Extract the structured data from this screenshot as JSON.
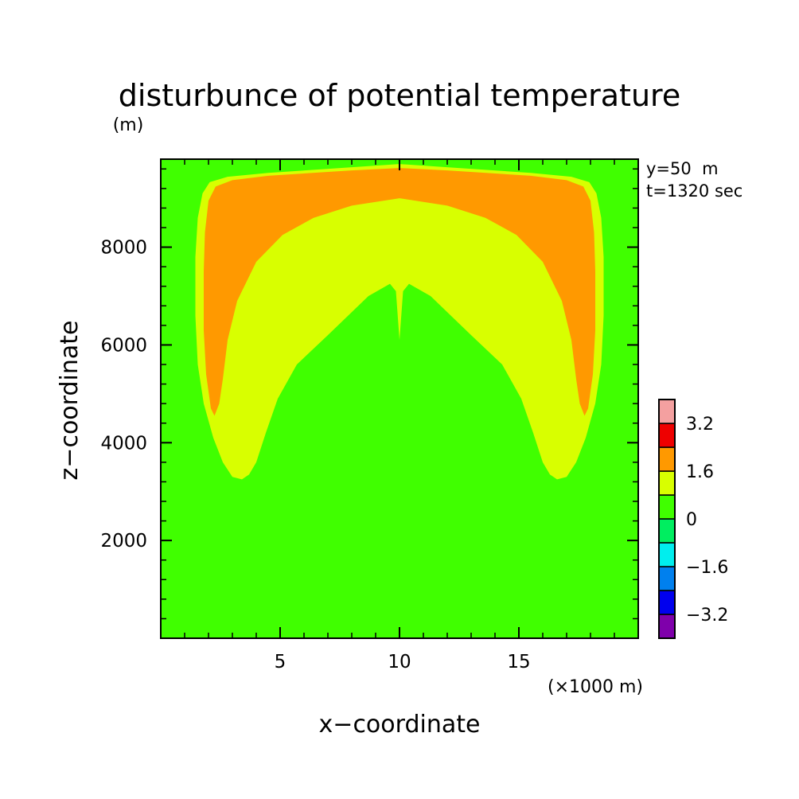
{
  "chart_data": {
    "type": "heatmap",
    "title": "disturbunce of potential temperature",
    "ylabel": "z−coordinate",
    "ylabel_unit": "(m)",
    "xlabel": "x−coordinate",
    "xlabel_unit": "(×1000 m)",
    "annotations": [
      "y=50  m",
      "t=1320 sec"
    ],
    "xlim": [
      0,
      20
    ],
    "ylim": [
      0,
      9800
    ],
    "x_ticks": [
      {
        "value": 5,
        "label": "5"
      },
      {
        "value": 10,
        "label": "10"
      },
      {
        "value": 15,
        "label": "15"
      }
    ],
    "x_minor_step": 1,
    "y_ticks": [
      {
        "value": 2000,
        "label": "2000"
      },
      {
        "value": 4000,
        "label": "4000"
      },
      {
        "value": 6000,
        "label": "6000"
      },
      {
        "value": 8000,
        "label": "8000"
      }
    ],
    "y_minor_step": 400,
    "legend": {
      "placement": "right",
      "bands": [
        {
          "range": [
            -4.0,
            -3.2
          ],
          "color": "#7f00ab"
        },
        {
          "range": [
            -3.2,
            -2.4
          ],
          "color": "#0000ee"
        },
        {
          "range": [
            -2.4,
            -1.6
          ],
          "color": "#0080ee"
        },
        {
          "range": [
            -1.6,
            -0.8
          ],
          "color": "#00eeee"
        },
        {
          "range": [
            -0.8,
            0.0
          ],
          "color": "#00ee60"
        },
        {
          "range": [
            0.0,
            0.8
          ],
          "color": "#40ff00"
        },
        {
          "range": [
            0.8,
            1.6
          ],
          "color": "#d8ff00"
        },
        {
          "range": [
            1.6,
            2.4
          ],
          "color": "#ff9900"
        },
        {
          "range": [
            2.4,
            3.2
          ],
          "color": "#ee0000"
        },
        {
          "range": [
            3.2,
            4.0
          ],
          "color": "#f4a0a0"
        }
      ],
      "labels": [
        {
          "value": 3.2,
          "label": "3.2"
        },
        {
          "value": 1.6,
          "label": "1.6"
        },
        {
          "value": 0,
          "label": "0"
        },
        {
          "value": -1.6,
          "label": "−1.6"
        },
        {
          "value": -3.2,
          "label": "−3.2"
        }
      ]
    },
    "background_color": "#40ff00",
    "regions": [
      {
        "name": "outer-band-0.8-1.6",
        "color": "#d8ff00",
        "polygon": [
          [
            10,
            9700
          ],
          [
            11.8,
            9640
          ],
          [
            15.5,
            9520
          ],
          [
            17.2,
            9440
          ],
          [
            17.95,
            9330
          ],
          [
            18.25,
            9100
          ],
          [
            18.45,
            8600
          ],
          [
            18.55,
            7800
          ],
          [
            18.55,
            6600
          ],
          [
            18.45,
            5600
          ],
          [
            18.2,
            4800
          ],
          [
            17.8,
            4100
          ],
          [
            17.4,
            3600
          ],
          [
            17.0,
            3300
          ],
          [
            16.6,
            3250
          ],
          [
            16.3,
            3350
          ],
          [
            16.0,
            3600
          ],
          [
            15.6,
            4200
          ],
          [
            15.1,
            4900
          ],
          [
            14.3,
            5600
          ],
          [
            13.0,
            6200
          ],
          [
            11.3,
            7000
          ],
          [
            10.4,
            7250
          ],
          [
            10.15,
            7100
          ],
          [
            10.0,
            6100
          ],
          [
            9.85,
            7100
          ],
          [
            9.6,
            7250
          ],
          [
            8.7,
            7000
          ],
          [
            7.0,
            6200
          ],
          [
            5.7,
            5600
          ],
          [
            4.9,
            4900
          ],
          [
            4.4,
            4200
          ],
          [
            4.0,
            3600
          ],
          [
            3.7,
            3350
          ],
          [
            3.4,
            3250
          ],
          [
            3.0,
            3300
          ],
          [
            2.6,
            3600
          ],
          [
            2.2,
            4100
          ],
          [
            1.8,
            4800
          ],
          [
            1.55,
            5600
          ],
          [
            1.45,
            6600
          ],
          [
            1.45,
            7800
          ],
          [
            1.55,
            8600
          ],
          [
            1.75,
            9100
          ],
          [
            2.05,
            9330
          ],
          [
            2.8,
            9440
          ],
          [
            4.5,
            9520
          ],
          [
            8.2,
            9640
          ]
        ]
      },
      {
        "name": "band-1.6-2.4",
        "color": "#ff9900",
        "polygon": [
          [
            10,
            9620
          ],
          [
            12.0,
            9570
          ],
          [
            15.5,
            9460
          ],
          [
            17.0,
            9370
          ],
          [
            17.7,
            9240
          ],
          [
            18.0,
            8950
          ],
          [
            18.15,
            8300
          ],
          [
            18.2,
            7500
          ],
          [
            18.2,
            6300
          ],
          [
            18.1,
            5400
          ],
          [
            17.9,
            4700
          ],
          [
            17.75,
            4550
          ],
          [
            17.55,
            4800
          ],
          [
            17.4,
            5300
          ],
          [
            17.2,
            6100
          ],
          [
            16.8,
            6900
          ],
          [
            16.0,
            7700
          ],
          [
            14.9,
            8250
          ],
          [
            13.6,
            8600
          ],
          [
            12.0,
            8850
          ],
          [
            10.0,
            9000
          ],
          [
            8.0,
            8850
          ],
          [
            6.4,
            8600
          ],
          [
            5.1,
            8250
          ],
          [
            4.0,
            7700
          ],
          [
            3.2,
            6900
          ],
          [
            2.8,
            6100
          ],
          [
            2.6,
            5300
          ],
          [
            2.45,
            4800
          ],
          [
            2.25,
            4550
          ],
          [
            2.1,
            4700
          ],
          [
            1.9,
            5400
          ],
          [
            1.8,
            6300
          ],
          [
            1.8,
            7500
          ],
          [
            1.85,
            8300
          ],
          [
            2.0,
            8950
          ],
          [
            2.3,
            9240
          ],
          [
            3.0,
            9370
          ],
          [
            4.5,
            9460
          ],
          [
            8.0,
            9570
          ]
        ]
      }
    ]
  }
}
